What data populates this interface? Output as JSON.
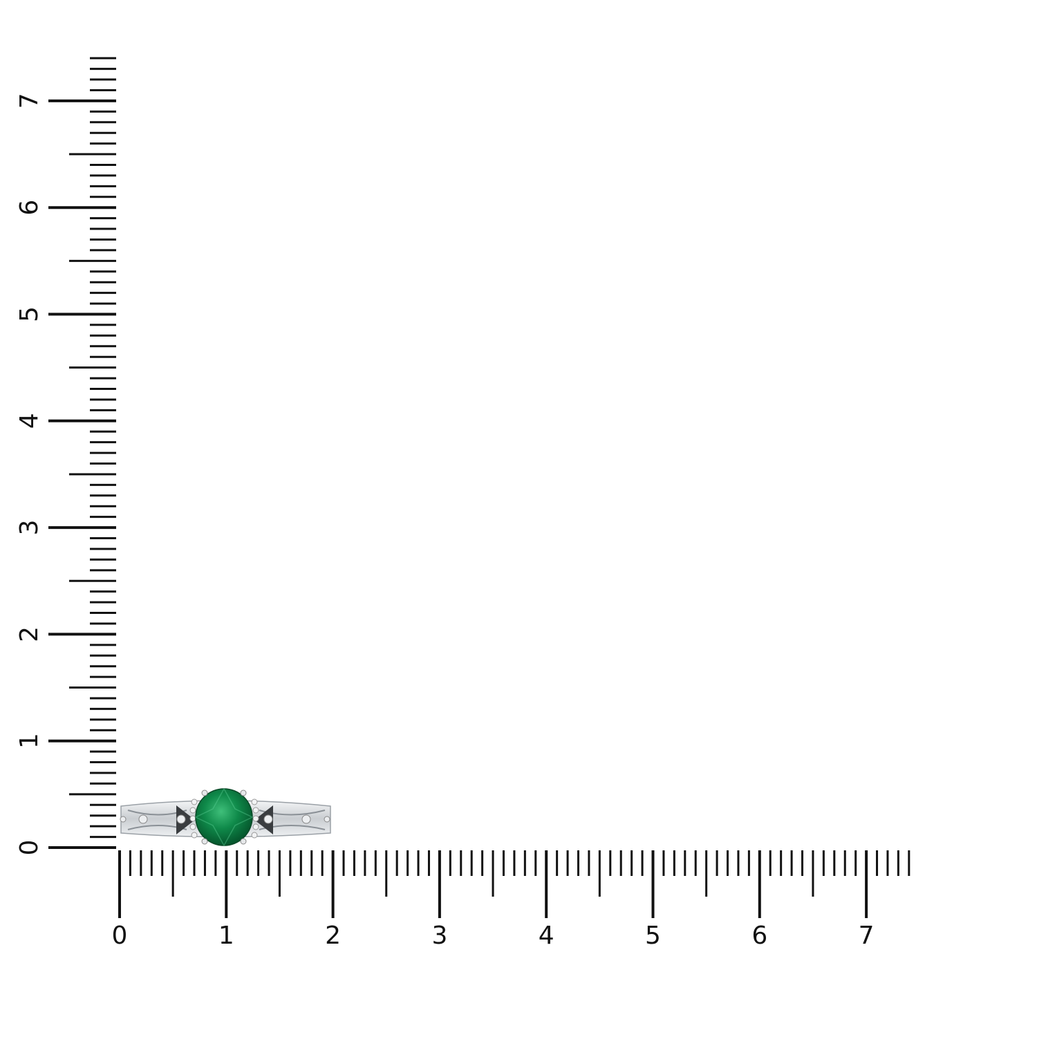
{
  "rulers": {
    "color": "#111111",
    "horizontal": {
      "labels": [
        "0",
        "1",
        "2",
        "3",
        "4",
        "5",
        "6",
        "7"
      ],
      "max": 7.4,
      "minor_per_unit": 10
    },
    "vertical": {
      "labels": [
        "0",
        "1",
        "2",
        "3",
        "4",
        "5",
        "6",
        "7"
      ],
      "max": 7.4,
      "minor_per_unit": 10
    }
  },
  "product": {
    "item": "ring",
    "center_stone_color": "#0f8a4a",
    "metal_color": "#d9dcdf"
  }
}
